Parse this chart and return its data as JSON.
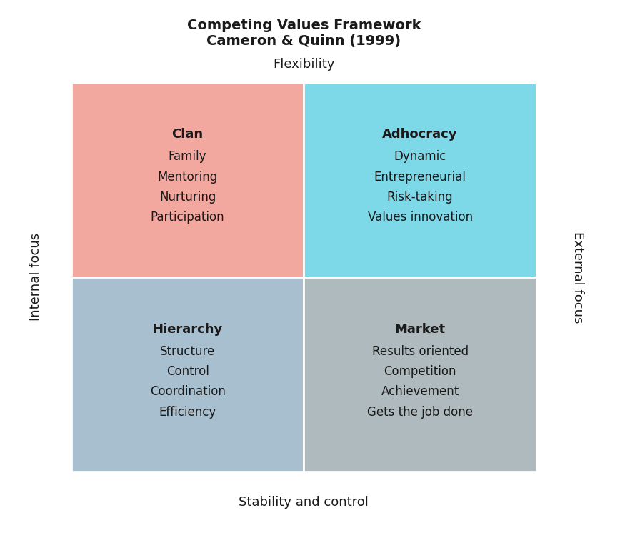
{
  "title_line1": "Competing Values Framework",
  "title_line2": "Cameron & Quinn (1999)",
  "title_fontsize": 14,
  "top_label": "Flexibility",
  "bottom_label": "Stability and control",
  "left_label": "Internal focus",
  "right_label": "External focus",
  "axis_label_fontsize": 13,
  "quadrants": [
    {
      "name": "Clan",
      "position": "top-left",
      "color": "#F2A79F",
      "items": [
        "Family",
        "Mentoring",
        "Nurturing",
        "Participation"
      ]
    },
    {
      "name": "Adhocracy",
      "position": "top-right",
      "color": "#7DD8E8",
      "items": [
        "Dynamic",
        "Entrepreneurial",
        "Risk-taking",
        "Values innovation"
      ]
    },
    {
      "name": "Hierarchy",
      "position": "bottom-left",
      "color": "#A8BFD0",
      "items": [
        "Structure",
        "Control",
        "Coordination",
        "Efficiency"
      ]
    },
    {
      "name": "Market",
      "position": "bottom-right",
      "color": "#AEBABD",
      "items": [
        "Results oriented",
        "Competition",
        "Achievement",
        "Gets the job done"
      ]
    }
  ],
  "quadrant_name_fontsize": 13,
  "quadrant_item_fontsize": 12,
  "text_color": "#1a1a1a",
  "background_color": "#ffffff",
  "line_color": "#ffffff",
  "line_width": 2.0
}
